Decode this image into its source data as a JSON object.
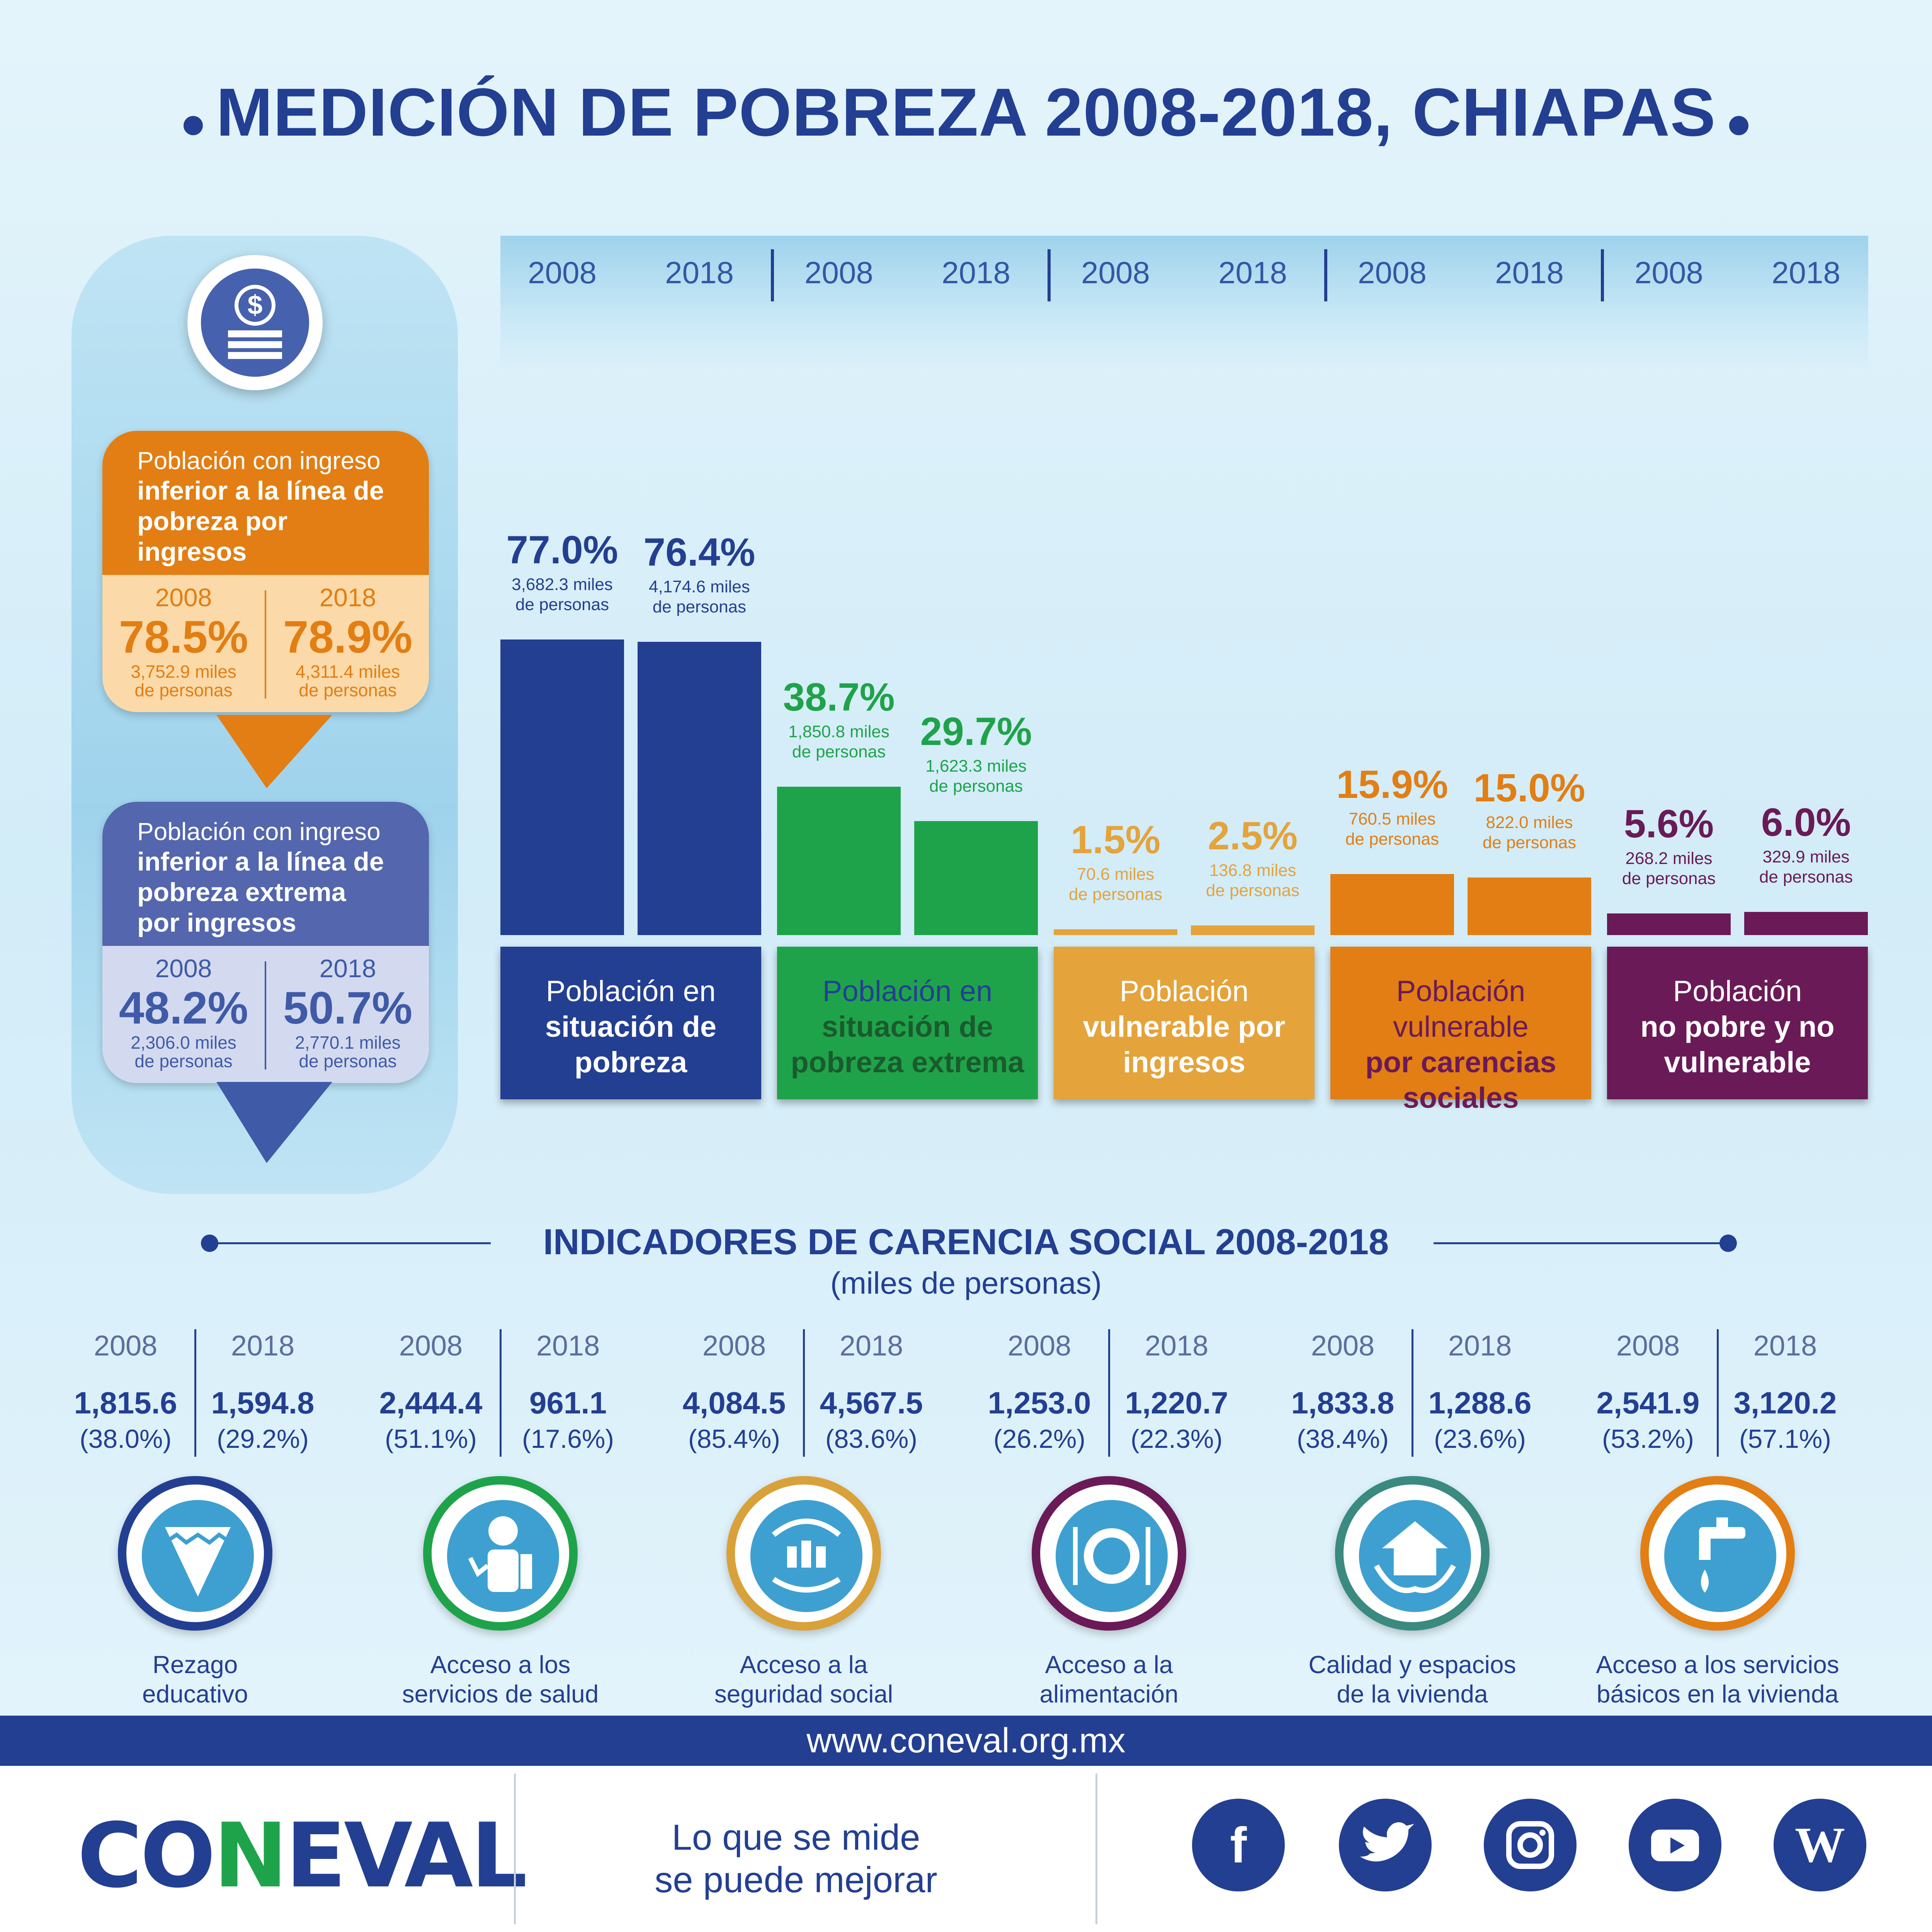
{
  "title": "MEDICIÓN DE POBREZA 2008-2018, CHIAPAS",
  "colors": {
    "pobreza": "#233f92",
    "extrema": "#1fa34a",
    "vuln_ingresos": "#e4a33b",
    "vuln_carencias": "#e27e13",
    "no_pobre": "#6a1a57"
  },
  "left_panel": {
    "icon": "coin-stack-icon",
    "linea_pobreza": {
      "label_normal": "Población con ingreso",
      "label_bold": "inferior a la línea de pobreza por ingresos",
      "y2008": "2008",
      "pct2008": "78.5%",
      "miles2008": "3,752.9 miles",
      "personas2008": "de personas",
      "y2018": "2018",
      "pct2018": "78.9%",
      "miles2018": "4,311.4 miles",
      "personas2018": "de personas"
    },
    "linea_extrema": {
      "label_normal": "Población con ingreso",
      "label_bold": "inferior a la línea de pobreza extrema por ingresos",
      "y2008": "2008",
      "pct2008": "48.2%",
      "miles2008": "2,306.0 miles",
      "personas2008": "de personas",
      "y2018": "2018",
      "pct2018": "50.7%",
      "miles2018": "2,770.1 miles",
      "personas2018": "de personas"
    }
  },
  "chart_data": {
    "type": "bar",
    "years": [
      "2008",
      "2018"
    ],
    "groups": [
      {
        "l1": "Población en",
        "l2": "situación de",
        "l3": "pobreza",
        "values": [
          77.0,
          76.4
        ],
        "labels": [
          "77.0%",
          "76.4%"
        ],
        "miles": [
          "3,682.3 miles",
          "4,174.6 miles"
        ],
        "unit": "de personas"
      },
      {
        "l1": "Población en",
        "l2": "situación de",
        "l3": "pobreza extrema",
        "values": [
          38.7,
          29.7
        ],
        "labels": [
          "38.7%",
          "29.7%"
        ],
        "miles": [
          "1,850.8 miles",
          "1,623.3 miles"
        ],
        "unit": "de personas"
      },
      {
        "l1": "Población",
        "l2": "vulnerable por",
        "l3": "ingresos",
        "values": [
          1.5,
          2.5
        ],
        "labels": [
          "1.5%",
          "2.5%"
        ],
        "miles": [
          "70.6 miles",
          "136.8 miles"
        ],
        "unit": "de personas"
      },
      {
        "l1": "Población vulnerable",
        "l2": "por carencias",
        "l3": "sociales",
        "values": [
          15.9,
          15.0
        ],
        "labels": [
          "15.9%",
          "15.0%"
        ],
        "miles": [
          "760.5 miles",
          "822.0 miles"
        ],
        "unit": "de personas"
      },
      {
        "l1": "Población",
        "l2": "no pobre y no",
        "l3": "vulnerable",
        "values": [
          5.6,
          6.0
        ],
        "labels": [
          "5.6%",
          "6.0%"
        ],
        "miles": [
          "268.2 miles",
          "329.9 miles"
        ],
        "unit": "de personas"
      }
    ],
    "ylim": [
      0,
      77.0
    ]
  },
  "indicators": {
    "title": "INDICADORES DE CARENCIA SOCIAL 2008-2018",
    "subtitle": "(miles de personas)",
    "items": [
      {
        "y1": "2008",
        "y2": "2018",
        "v1": "1,815.6",
        "v2": "1,594.8",
        "p1": "(38.0%)",
        "p2": "(29.2%)",
        "l1": "Rezago",
        "l2": "educativo",
        "icon": "pencil-icon",
        "ring": "#233f92"
      },
      {
        "y1": "2008",
        "y2": "2018",
        "v1": "2,444.4",
        "v2": "961.1",
        "p1": "(51.1%)",
        "p2": "(17.6%)",
        "l1": "Acceso a los",
        "l2": "servicios de salud",
        "icon": "doctor-icon",
        "ring": "#1fa34a"
      },
      {
        "y1": "2008",
        "y2": "2018",
        "v1": "4,084.5",
        "v2": "4,567.5",
        "p1": "(85.4%)",
        "p2": "(83.6%)",
        "l1": "Acceso a la",
        "l2": "seguridad social",
        "icon": "family-hands-icon",
        "ring": "#d9a13a"
      },
      {
        "y1": "2008",
        "y2": "2018",
        "v1": "1,253.0",
        "v2": "1,220.7",
        "p1": "(26.2%)",
        "p2": "(22.3%)",
        "l1": "Acceso a la",
        "l2": "alimentación",
        "icon": "plate-cutlery-icon",
        "ring": "#6a1a57"
      },
      {
        "y1": "2008",
        "y2": "2018",
        "v1": "1,833.8",
        "v2": "1,288.6",
        "p1": "(38.4%)",
        "p2": "(23.6%)",
        "l1": "Calidad y espacios",
        "l2": "de la vivienda",
        "icon": "house-hands-icon",
        "ring": "#3a8a80"
      },
      {
        "y1": "2008",
        "y2": "2018",
        "v1": "2,541.9",
        "v2": "3,120.2",
        "p1": "(53.2%)",
        "p2": "(57.1%)",
        "l1": "Acceso a los servicios",
        "l2": "básicos en la vivienda",
        "icon": "water-tap-icon",
        "ring": "#e27e13"
      }
    ]
  },
  "footer": {
    "url": "www.coneval.org.mx",
    "logo_a": "CO",
    "logo_n": "N",
    "logo_b": "EVAL",
    "slogan1": "Lo que se mide",
    "slogan2": "se puede mejorar",
    "social": [
      {
        "icon": "facebook-icon",
        "glyph": "f"
      },
      {
        "icon": "twitter-icon",
        "glyph": ""
      },
      {
        "icon": "instagram-icon",
        "glyph": ""
      },
      {
        "icon": "youtube-icon",
        "glyph": ""
      },
      {
        "icon": "wordpress-icon",
        "glyph": "W"
      }
    ]
  }
}
